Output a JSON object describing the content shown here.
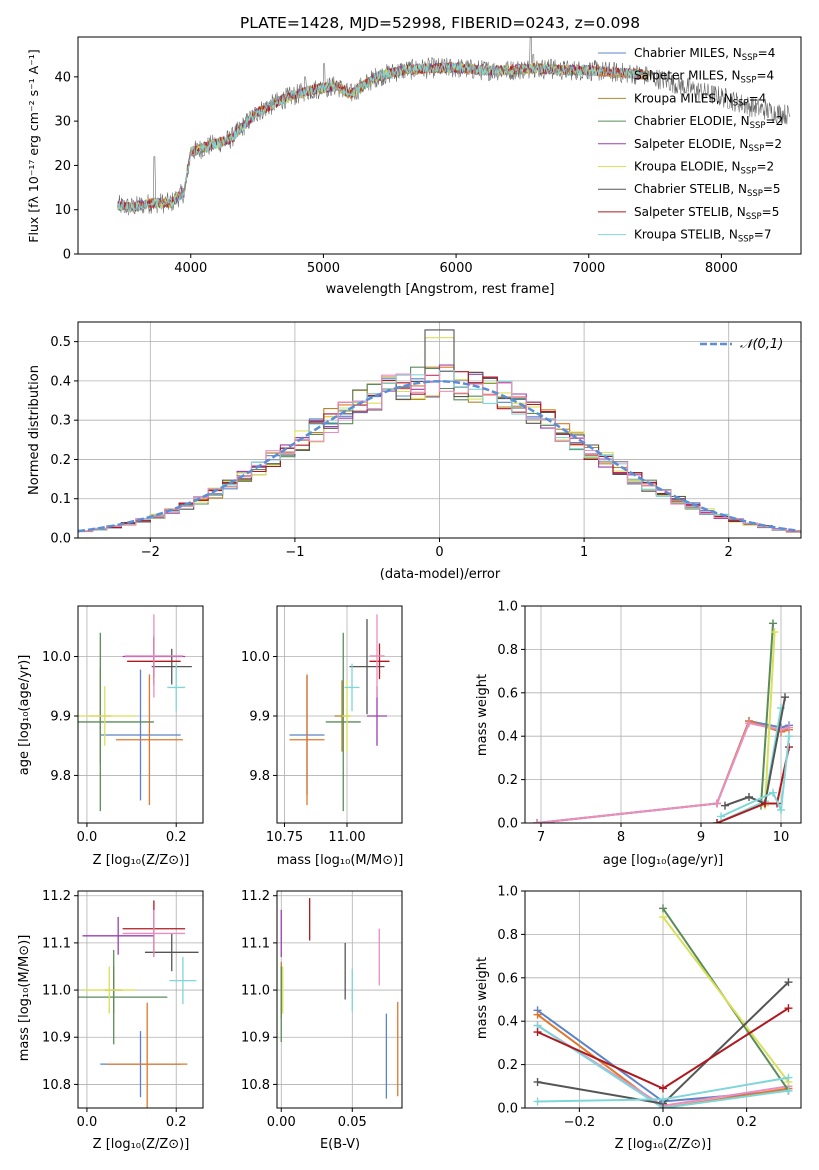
{
  "figure_title": "PLATE=1428, MJD=52998, FIBERID=0243, z=0.098",
  "series_styles": {
    "names": [
      {
        "base": "Chabrier MILES, N",
        "sub": "SSP",
        "tail": "=4"
      },
      {
        "base": "Salpeter MILES, N",
        "sub": "SSP",
        "tail": "=4"
      },
      {
        "base": "Kroupa MILES, N",
        "sub": "SSP",
        "tail": "=4"
      },
      {
        "base": "Chabrier ELODIE, N",
        "sub": "SSP",
        "tail": "=2"
      },
      {
        "base": "Salpeter ELODIE, N",
        "sub": "SSP",
        "tail": "=2"
      },
      {
        "base": "Kroupa ELODIE, N",
        "sub": "SSP",
        "tail": "=2"
      },
      {
        "base": "Chabrier STELIB, N",
        "sub": "SSP",
        "tail": "=5"
      },
      {
        "base": "Salpeter STELIB, N",
        "sub": "SSP",
        "tail": "=5"
      },
      {
        "base": "Kroupa STELIB, N",
        "sub": "SSP",
        "tail": "=7"
      }
    ],
    "colors": [
      "#5b84c8",
      "#e0772c",
      "#b6862f",
      "#5a8c5a",
      "#9b3fb0",
      "#d9e05a",
      "#555555",
      "#b0181e",
      "#7fd6d8"
    ]
  },
  "chart_data": [
    {
      "id": "spectrum",
      "type": "line",
      "xlabel": "wavelength [Angstrom, rest frame]",
      "ylabel": "Flux [fλ 10⁻¹⁷ erg cm⁻² s⁻¹ A⁻¹]",
      "xlim": [
        3150,
        8600
      ],
      "ylim": [
        0,
        49
      ],
      "xticks": [
        4000,
        5000,
        6000,
        7000,
        8000
      ],
      "yticks": [
        0,
        10,
        20,
        30,
        40
      ],
      "legend_position": "upper-right",
      "continuum": [
        [
          3450,
          11
        ],
        [
          3550,
          10.5
        ],
        [
          3700,
          11.5
        ],
        [
          3850,
          11.5
        ],
        [
          3950,
          14
        ],
        [
          4000,
          23
        ],
        [
          4100,
          24
        ],
        [
          4200,
          25
        ],
        [
          4300,
          26
        ],
        [
          4500,
          32
        ],
        [
          4700,
          35
        ],
        [
          4900,
          37
        ],
        [
          5100,
          38
        ],
        [
          5200,
          36
        ],
        [
          5400,
          40
        ],
        [
          5600,
          41.5
        ],
        [
          5800,
          42
        ],
        [
          6000,
          42
        ],
        [
          6200,
          41.5
        ],
        [
          6400,
          41.5
        ],
        [
          6600,
          42
        ],
        [
          6800,
          41.5
        ],
        [
          7000,
          41.5
        ],
        [
          7200,
          41
        ],
        [
          7400,
          40.5
        ],
        [
          7600,
          39
        ],
        [
          7800,
          37
        ],
        [
          8000,
          35.5
        ],
        [
          8200,
          33.5
        ],
        [
          8400,
          32
        ],
        [
          8500,
          31.5
        ]
      ],
      "emission_lines": [
        [
          3727,
          22
        ],
        [
          4861,
          40
        ],
        [
          5007,
          43
        ],
        [
          6563,
          49
        ],
        [
          6583,
          45
        ],
        [
          6716,
          44
        ]
      ],
      "dropouts": [
        [
          3530,
          "Salpeter MILES, N=4"
        ],
        [
          3920,
          "Kroupa ELODIE, N=2"
        ],
        [
          6790,
          "Kroupa ELODIE, N=2"
        ],
        [
          7420,
          "Salpeter MILES, N=4"
        ]
      ]
    },
    {
      "id": "residual-histogram",
      "type": "histogram",
      "xlabel": "(data-model)/error",
      "ylabel": "Normed distribution",
      "xlim": [
        -2.5,
        2.5
      ],
      "ylim": [
        0,
        0.55
      ],
      "xticks": [
        -2,
        -1,
        0,
        1,
        2
      ],
      "yticks": [
        0.0,
        0.1,
        0.2,
        0.3,
        0.4,
        0.5
      ],
      "bin_width": 0.1,
      "reference_curve": {
        "label": "𝒩(0,1)",
        "mean": 0,
        "sigma": 1,
        "color": "#5b8ed6"
      },
      "legend_position": "upper-right"
    },
    {
      "id": "age-vs-z",
      "type": "errorbar",
      "xlabel": "Z [log₁₀(Z/Z⊙)]",
      "ylabel": "age  [log₁₀(age/yr)]",
      "xlim": [
        -0.02,
        0.26
      ],
      "ylim": [
        9.72,
        10.085
      ],
      "xticks": [
        0.0,
        0.2
      ],
      "yticks": [
        9.8,
        9.9,
        10.0
      ],
      "points": [
        {
          "x": 0.12,
          "y": 9.868,
          "xerr": 0.09,
          "yerr": 0.11
        },
        {
          "x": 0.14,
          "y": 9.86,
          "xerr": 0.075,
          "yerr": 0.11
        },
        {
          "x": 0.03,
          "y": 9.9,
          "xerr": 0.025,
          "yerr": 0.08
        },
        {
          "x": 0.03,
          "y": 9.89,
          "xerr": 0.12,
          "yerr": 0.15
        },
        {
          "x": 0.15,
          "y": 10.0,
          "xerr": 0.07,
          "yerr": 0.035
        },
        {
          "x": 0.04,
          "y": 9.9,
          "xerr": 0.07,
          "yerr": 0.05
        },
        {
          "x": 0.19,
          "y": 9.983,
          "xerr": 0.045,
          "yerr": 0.03
        },
        {
          "x": 0.15,
          "y": 9.992,
          "xerr": 0.06,
          "yerr": 0.04
        },
        {
          "x": 0.2,
          "y": 9.948,
          "xerr": 0.02,
          "yerr": 0.04
        },
        {
          "x": 0.15,
          "y": 10.001,
          "xerr": 0.065,
          "yerr": 0.07
        }
      ]
    },
    {
      "id": "age-vs-mass",
      "type": "errorbar",
      "xlabel": "mass [log₁₀(M/M⊙)]",
      "ylabel": "",
      "xlim": [
        10.72,
        11.22
      ],
      "ylim": [
        9.72,
        10.085
      ],
      "xticks": [
        10.75,
        11.0
      ],
      "yticks": [
        9.8,
        9.9,
        10.0
      ],
      "points": [
        {
          "x": 10.84,
          "y": 9.868,
          "xerr": 0.07,
          "yerr": 0.1
        },
        {
          "x": 10.84,
          "y": 9.86,
          "xerr": 0.07,
          "yerr": 0.11
        },
        {
          "x": 10.98,
          "y": 9.9,
          "xerr": 0.03,
          "yerr": 0.06
        },
        {
          "x": 10.985,
          "y": 9.89,
          "xerr": 0.07,
          "yerr": 0.15
        },
        {
          "x": 11.12,
          "y": 9.9,
          "xerr": 0.04,
          "yerr": 0.05
        },
        {
          "x": 11.0,
          "y": 9.9,
          "xerr": 0.02,
          "yerr": 0.06
        },
        {
          "x": 11.08,
          "y": 9.983,
          "xerr": 0.07,
          "yerr": 0.08
        },
        {
          "x": 11.13,
          "y": 9.992,
          "xerr": 0.04,
          "yerr": 0.03
        },
        {
          "x": 11.02,
          "y": 9.948,
          "xerr": 0.03,
          "yerr": 0.04
        },
        {
          "x": 11.12,
          "y": 10.001,
          "xerr": 0.03,
          "yerr": 0.07
        }
      ]
    },
    {
      "id": "mass-weight-vs-age",
      "type": "line",
      "xlabel": "age  [log₁₀(age/yr)]",
      "ylabel": "mass weight",
      "xlim": [
        6.8,
        10.25
      ],
      "ylim": [
        0,
        1.0
      ],
      "xticks": [
        7,
        8,
        9,
        10
      ],
      "yticks": [
        0.0,
        0.2,
        0.4,
        0.6,
        0.8,
        1.0
      ],
      "series": [
        {
          "points": [
            [
              6.95,
              0.0
            ],
            [
              9.2,
              0.09
            ],
            [
              9.6,
              0.47
            ],
            [
              10.0,
              0.44
            ],
            [
              10.1,
              0.45
            ]
          ]
        },
        {
          "points": [
            [
              6.95,
              0.0
            ],
            [
              9.2,
              0.09
            ],
            [
              9.6,
              0.47
            ],
            [
              10.0,
              0.42
            ],
            [
              10.1,
              0.43
            ]
          ]
        },
        {
          "points": [
            [
              6.95,
              0.0
            ],
            [
              9.2,
              0.09
            ],
            [
              9.6,
              0.46
            ],
            [
              10.0,
              0.43
            ],
            [
              10.1,
              0.44
            ]
          ]
        },
        {
          "points": [
            [
              9.75,
              0.08
            ],
            [
              9.9,
              0.92
            ]
          ]
        },
        {
          "points": [
            [
              9.2,
              0.0
            ],
            [
              9.8,
              0.1
            ],
            [
              10.0,
              0.53
            ]
          ]
        },
        {
          "points": [
            [
              9.8,
              0.08
            ],
            [
              9.92,
              0.88
            ]
          ]
        },
        {
          "points": [
            [
              9.3,
              0.08
            ],
            [
              9.6,
              0.12
            ],
            [
              9.8,
              0.09
            ],
            [
              10.05,
              0.58
            ]
          ]
        },
        {
          "points": [
            [
              9.2,
              0.0
            ],
            [
              9.8,
              0.09
            ],
            [
              9.95,
              0.09
            ],
            [
              10.1,
              0.35
            ]
          ]
        },
        {
          "points": [
            [
              9.25,
              0.03
            ],
            [
              9.9,
              0.14
            ],
            [
              10.0,
              0.06
            ],
            [
              10.1,
              0.4
            ]
          ]
        }
      ]
    },
    {
      "id": "mass-vs-z",
      "type": "errorbar",
      "xlabel": "Z [log₁₀(Z/Z⊙)]",
      "ylabel": "mass [log₁₀(M/M⊙)]",
      "xlim": [
        -0.02,
        0.26
      ],
      "ylim": [
        10.75,
        11.21
      ],
      "xticks": [
        0.0,
        0.2
      ],
      "yticks": [
        10.8,
        10.9,
        11.0,
        11.1,
        11.2
      ],
      "points": [
        {
          "x": 0.12,
          "y": 10.843,
          "xerr": 0.09,
          "yerr": 0.07
        },
        {
          "x": 0.135,
          "y": 10.843,
          "xerr": 0.09,
          "yerr": 0.13
        },
        {
          "x": 0.06,
          "y": 11.0,
          "xerr": 0.02,
          "yerr": 0.05
        },
        {
          "x": 0.06,
          "y": 10.985,
          "xerr": 0.12,
          "yerr": 0.1
        },
        {
          "x": 0.07,
          "y": 11.115,
          "xerr": 0.08,
          "yerr": 0.04
        },
        {
          "x": 0.05,
          "y": 11.0,
          "xerr": 0.06,
          "yerr": 0.05
        },
        {
          "x": 0.19,
          "y": 11.08,
          "xerr": 0.06,
          "yerr": 0.04
        },
        {
          "x": 0.15,
          "y": 11.13,
          "xerr": 0.07,
          "yerr": 0.06
        },
        {
          "x": 0.215,
          "y": 11.02,
          "xerr": 0.03,
          "yerr": 0.05
        },
        {
          "x": 0.15,
          "y": 11.12,
          "xerr": 0.07,
          "yerr": 0.05
        }
      ]
    },
    {
      "id": "mass-vs-ebv",
      "type": "errorbar",
      "xlabel": "E(B-V)",
      "ylabel": "",
      "xlim": [
        -0.003,
        0.085
      ],
      "ylim": [
        10.75,
        11.21
      ],
      "xticks": [
        0.0,
        0.05
      ],
      "yticks": [
        10.8,
        10.9,
        11.0,
        11.1,
        11.2
      ],
      "points": [
        {
          "x": 0.074,
          "y": 10.86,
          "xerr": 0,
          "yerr": 0.09
        },
        {
          "x": 0.082,
          "y": 10.875,
          "xerr": 0,
          "yerr": 0.1
        },
        {
          "x": 0.0,
          "y": 11.0,
          "xerr": 0,
          "yerr": 0.06
        },
        {
          "x": 0.0,
          "y": 10.97,
          "xerr": 0,
          "yerr": 0.08
        },
        {
          "x": 0.0,
          "y": 11.12,
          "xerr": 0,
          "yerr": 0.05
        },
        {
          "x": 0.001,
          "y": 11.0,
          "xerr": 0,
          "yerr": 0.05
        },
        {
          "x": 0.045,
          "y": 11.04,
          "xerr": 0,
          "yerr": 0.06
        },
        {
          "x": 0.02,
          "y": 11.15,
          "xerr": 0,
          "yerr": 0.045
        },
        {
          "x": 0.05,
          "y": 11.0,
          "xerr": 0,
          "yerr": 0.045
        },
        {
          "x": 0.069,
          "y": 11.07,
          "xerr": 0,
          "yerr": 0.06
        }
      ]
    },
    {
      "id": "mass-weight-vs-z",
      "type": "line",
      "xlabel": "Z [log₁₀(Z/Z⊙)]",
      "ylabel": "mass weight",
      "xlim": [
        -0.33,
        0.33
      ],
      "ylim": [
        0,
        1.0
      ],
      "xticks": [
        -0.2,
        0.0,
        0.2
      ],
      "yticks": [
        0.0,
        0.2,
        0.4,
        0.6,
        0.8,
        1.0
      ],
      "series": [
        {
          "points": [
            [
              -0.3,
              0.45
            ],
            [
              0.0,
              0.03
            ],
            [
              0.3,
              0.08
            ]
          ]
        },
        {
          "points": [
            [
              -0.3,
              0.43
            ],
            [
              0.0,
              0.0
            ],
            [
              0.3,
              0.09
            ]
          ]
        },
        {
          "points": [
            [
              -0.3,
              0.38
            ],
            [
              0.0,
              0.01
            ],
            [
              0.3,
              0.1
            ]
          ]
        },
        {
          "points": [
            [
              0.0,
              0.92
            ],
            [
              0.3,
              0.08
            ]
          ]
        },
        {
          "points": [
            [
              -0.3,
              0.38
            ],
            [
              0.0,
              0.0
            ],
            [
              0.3,
              0.08
            ]
          ]
        },
        {
          "points": [
            [
              0.0,
              0.88
            ],
            [
              0.3,
              0.12
            ]
          ]
        },
        {
          "points": [
            [
              -0.3,
              0.12
            ],
            [
              0.0,
              0.02
            ],
            [
              0.3,
              0.58
            ]
          ]
        },
        {
          "points": [
            [
              -0.3,
              0.35
            ],
            [
              0.0,
              0.09
            ],
            [
              0.3,
              0.46
            ]
          ]
        },
        {
          "points": [
            [
              -0.3,
              0.03
            ],
            [
              0.0,
              0.04
            ],
            [
              0.3,
              0.14
            ]
          ]
        }
      ]
    }
  ]
}
